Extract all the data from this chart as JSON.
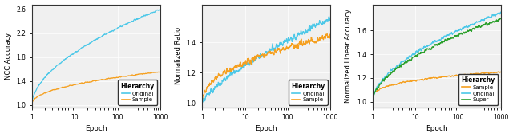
{
  "figsize": [
    6.4,
    1.72
  ],
  "dpi": 100,
  "background_color": "#ffffff",
  "subplots": [
    {
      "ylabel": "NCC Accuracy",
      "xlabel": "Epoch",
      "xlim": [
        1,
        1000
      ],
      "ylim": [
        0.95,
        2.68
      ],
      "yticks": [
        1.0,
        1.4,
        1.8,
        2.2,
        2.6
      ],
      "legend_entries": [
        "Original",
        "Sample"
      ],
      "legend_colors": [
        "#4dc8e8",
        "#f5a020"
      ],
      "legend_title": "Hierarchy",
      "series": [
        {
          "label": "Original",
          "color": "#4dc8e8",
          "start": 1.0,
          "end": 2.6,
          "exponent": 0.55,
          "noise": 0.015,
          "noise_smooth": 8
        },
        {
          "label": "Sample",
          "color": "#f5a020",
          "start": 1.0,
          "end": 1.55,
          "exponent": 0.45,
          "noise": 0.01,
          "noise_smooth": 8
        }
      ]
    },
    {
      "ylabel": "Normalized Ratio",
      "xlabel": "Epoch",
      "xlim": [
        1,
        1000
      ],
      "ylim": [
        0.97,
        1.65
      ],
      "yticks": [
        1.0,
        1.2,
        1.4
      ],
      "legend_entries": [
        "Original",
        "Sample"
      ],
      "legend_colors": [
        "#4dc8e8",
        "#f5a020"
      ],
      "legend_title": "Hierarchy",
      "series": [
        {
          "label": "Original",
          "color": "#4dc8e8",
          "start": 1.0,
          "end": 1.56,
          "exponent": 0.75,
          "noise": 0.02,
          "noise_smooth": 5
        },
        {
          "label": "Sample",
          "color": "#f5a020",
          "start": 1.0,
          "end": 1.44,
          "exponent": 0.45,
          "noise": 0.02,
          "noise_smooth": 5
        }
      ]
    },
    {
      "ylabel": "Normalized Linear Accuracy",
      "xlabel": "Epoch",
      "xlim": [
        1,
        1000
      ],
      "ylim": [
        0.95,
        1.82
      ],
      "yticks": [
        1.0,
        1.2,
        1.4,
        1.6
      ],
      "legend_entries": [
        "Sample",
        "Original",
        "Super"
      ],
      "legend_colors": [
        "#f5a020",
        "#4dc8e8",
        "#2ca02c"
      ],
      "legend_title": "Hierarchy",
      "series": [
        {
          "label": "Sample",
          "color": "#f5a020",
          "start": 1.0,
          "end": 1.25,
          "exponent": 0.3,
          "noise": 0.008,
          "noise_smooth": 8
        },
        {
          "label": "Original",
          "color": "#4dc8e8",
          "start": 1.0,
          "end": 1.75,
          "exponent": 0.55,
          "noise": 0.013,
          "noise_smooth": 6
        },
        {
          "label": "Super",
          "color": "#2ca02c",
          "start": 1.0,
          "end": 1.7,
          "exponent": 0.55,
          "noise": 0.013,
          "noise_smooth": 6
        }
      ]
    }
  ]
}
